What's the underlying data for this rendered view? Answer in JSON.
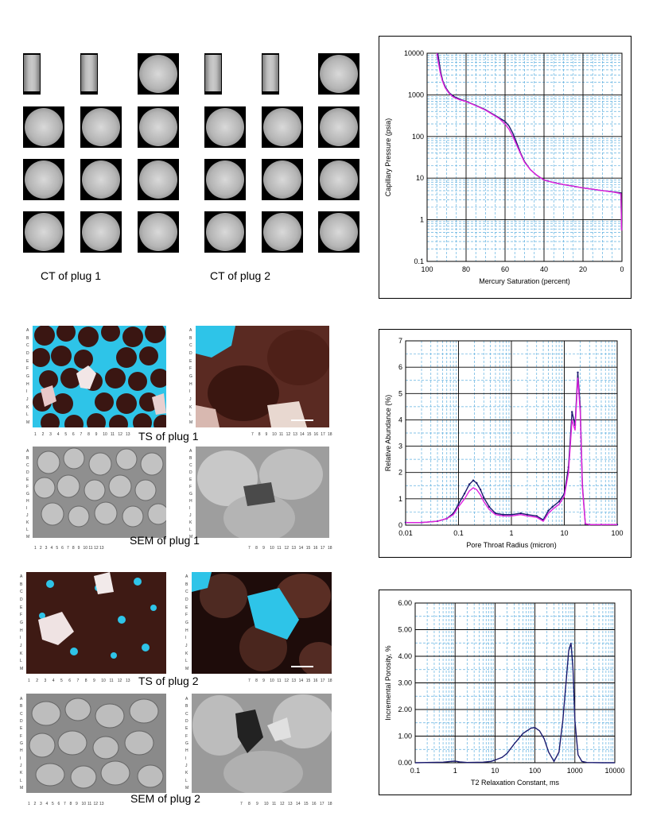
{
  "captions": {
    "ct1": "CT of plug 1",
    "ct2": "CT of plug 2",
    "ts1": "TS of plug 1",
    "sem1": "SEM of plug 1",
    "ts2": "TS of plug 2",
    "sem2": "SEM of plug 2"
  },
  "micrograph_grid": {
    "row_letters": [
      "A",
      "B",
      "C",
      "D",
      "E",
      "F",
      "G",
      "H",
      "I",
      "J",
      "K",
      "L",
      "M"
    ],
    "cols_left": [
      "1",
      "2",
      "3",
      "4",
      "5",
      "6",
      "7",
      "8",
      "9",
      "10",
      "11",
      "12",
      "13"
    ],
    "cols_right": [
      "7",
      "8",
      "9",
      "10",
      "11",
      "12",
      "13",
      "14",
      "15",
      "16",
      "17",
      "18"
    ]
  },
  "colors": {
    "series_navy": "#1a1a6e",
    "series_magenta": "#e020e0",
    "grid_dashed": "#5fb0e0",
    "pore_blue": "#2ec4e8"
  },
  "chart_data": [
    {
      "type": "line",
      "title": "",
      "xlabel": "Mercury Saturation (percent)",
      "ylabel": "Capillary Pressure (psia)",
      "xlim": [
        100,
        0
      ],
      "ylim": [
        0.1,
        10000
      ],
      "yscale": "log",
      "x_ticks": [
        "100",
        "80",
        "60",
        "40",
        "20",
        "0"
      ],
      "y_ticks": [
        "0.1",
        "1",
        "10",
        "100",
        "1000",
        "10000"
      ],
      "grid": true,
      "series": [
        {
          "x": [
            94.5,
            93.8,
            93,
            92,
            90.5,
            88.5,
            86,
            83,
            80,
            75,
            70,
            66,
            63,
            60,
            58,
            56,
            54,
            52,
            50,
            47,
            44,
            40,
            35,
            30,
            25,
            20,
            15,
            10,
            5,
            2,
            0.5,
            0.2
          ],
          "y": [
            10000,
            6000,
            3500,
            2200,
            1500,
            1100,
            900,
            780,
            700,
            560,
            440,
            340,
            280,
            230,
            180,
            120,
            70,
            40,
            25,
            16,
            12,
            9,
            7.8,
            7,
            6.4,
            5.8,
            5.4,
            5.0,
            4.7,
            4.5,
            4.4,
            0.6
          ]
        },
        {
          "x": [
            95,
            94.2,
            93.3,
            92.2,
            90.8,
            88.8,
            86.5,
            83.5,
            80,
            75,
            70,
            66,
            63,
            60,
            58,
            56,
            54,
            52,
            50,
            47,
            44,
            40,
            35,
            30,
            25,
            20,
            15,
            10,
            5,
            2,
            0.5,
            0.2
          ],
          "y": [
            10000,
            6000,
            3500,
            2200,
            1500,
            1100,
            880,
            770,
            690,
            550,
            430,
            330,
            270,
            200,
            150,
            100,
            62,
            38,
            24,
            16,
            12,
            9,
            7.8,
            7,
            6.4,
            5.8,
            5.4,
            5.0,
            4.7,
            4.4,
            4.2,
            0.55
          ]
        }
      ]
    },
    {
      "type": "line",
      "title": "",
      "xlabel": "Pore Throat Radius (micron)",
      "ylabel": "Relative Abundance (%)",
      "xlim": [
        0.01,
        100
      ],
      "xscale": "log",
      "ylim": [
        0,
        7
      ],
      "x_ticks": [
        "0.01",
        "0.1",
        "1",
        "10",
        "100"
      ],
      "y_ticks": [
        "0",
        "1",
        "2",
        "3",
        "4",
        "5",
        "6",
        "7"
      ],
      "grid": true,
      "series": [
        {
          "x": [
            0.01,
            0.02,
            0.04,
            0.06,
            0.08,
            0.1,
            0.13,
            0.16,
            0.19,
            0.22,
            0.26,
            0.3,
            0.38,
            0.5,
            0.7,
            1,
            1.5,
            2,
            3,
            4,
            5,
            6,
            8,
            10,
            12,
            14,
            16,
            18,
            20,
            22,
            25,
            30,
            50,
            100
          ],
          "y": [
            0.1,
            0.1,
            0.15,
            0.25,
            0.45,
            0.8,
            1.2,
            1.55,
            1.7,
            1.6,
            1.35,
            1.05,
            0.7,
            0.45,
            0.4,
            0.4,
            0.45,
            0.4,
            0.35,
            0.2,
            0.55,
            0.7,
            0.9,
            1.2,
            2.2,
            4.3,
            3.8,
            5.8,
            4.5,
            1.5,
            0.05,
            0.02,
            0.02,
            0.02
          ]
        },
        {
          "x": [
            0.01,
            0.02,
            0.04,
            0.06,
            0.08,
            0.1,
            0.13,
            0.16,
            0.19,
            0.22,
            0.26,
            0.3,
            0.38,
            0.5,
            0.7,
            1,
            1.5,
            2,
            3,
            4,
            5,
            6,
            8,
            10,
            12,
            14,
            16,
            18,
            20,
            22,
            25,
            30,
            50,
            100
          ],
          "y": [
            0.1,
            0.1,
            0.15,
            0.25,
            0.4,
            0.7,
            1.0,
            1.3,
            1.42,
            1.35,
            1.15,
            0.9,
            0.6,
            0.4,
            0.35,
            0.35,
            0.4,
            0.35,
            0.3,
            0.15,
            0.45,
            0.6,
            0.8,
            1.1,
            2.0,
            4.0,
            3.6,
            5.6,
            4.3,
            1.4,
            0.05,
            0.02,
            0.02,
            0.02
          ]
        }
      ]
    },
    {
      "type": "line",
      "title": "",
      "xlabel": "T2 Relaxation Constant, ms",
      "ylabel": "Incremental Porosity, %",
      "xlim": [
        0.1,
        10000
      ],
      "xscale": "log",
      "ylim": [
        0,
        6
      ],
      "x_ticks": [
        "0.1",
        "1",
        "10",
        "100",
        "1000",
        "10000"
      ],
      "y_ticks": [
        "0.00",
        "1.00",
        "2.00",
        "3.00",
        "4.00",
        "5.00",
        "6.00"
      ],
      "grid": true,
      "series": [
        {
          "x": [
            0.1,
            0.5,
            0.8,
            1,
            1.3,
            2,
            5,
            8,
            10,
            15,
            20,
            30,
            50,
            80,
            100,
            130,
            170,
            220,
            300,
            400,
            500,
            600,
            700,
            800,
            900,
            1000,
            1200,
            1500,
            2000,
            5000,
            10000
          ],
          "y": [
            0,
            0.02,
            0.05,
            0.06,
            0.03,
            0.01,
            0.02,
            0.05,
            0.1,
            0.2,
            0.35,
            0.7,
            1.1,
            1.3,
            1.32,
            1.2,
            0.9,
            0.4,
            0.05,
            0.4,
            1.6,
            3.0,
            4.2,
            4.5,
            3.5,
            1.6,
            0.3,
            0.05,
            0.01,
            0,
            0
          ]
        }
      ]
    }
  ]
}
